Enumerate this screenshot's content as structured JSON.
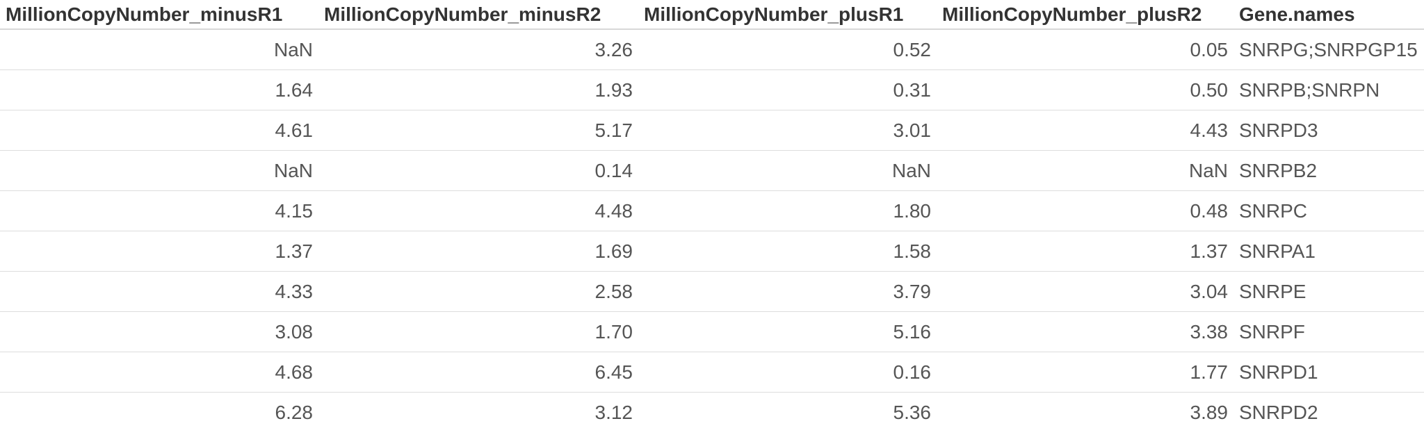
{
  "table": {
    "columns": [
      "MillionCopyNumber_minusR1",
      "MillionCopyNumber_minusR2",
      "MillionCopyNumber_plusR1",
      "MillionCopyNumber_plusR2",
      "Gene.names"
    ],
    "rows": [
      [
        "NaN",
        "3.26",
        "0.52",
        "0.05",
        "SNRPG;SNRPGP15"
      ],
      [
        "1.64",
        "1.93",
        "0.31",
        "0.50",
        "SNRPB;SNRPN"
      ],
      [
        "4.61",
        "5.17",
        "3.01",
        "4.43",
        "SNRPD3"
      ],
      [
        "NaN",
        "0.14",
        "NaN",
        "NaN",
        "SNRPB2"
      ],
      [
        "4.15",
        "4.48",
        "1.80",
        "0.48",
        "SNRPC"
      ],
      [
        "1.37",
        "1.69",
        "1.58",
        "1.37",
        "SNRPA1"
      ],
      [
        "4.33",
        "2.58",
        "3.79",
        "3.04",
        "SNRPE"
      ],
      [
        "3.08",
        "1.70",
        "5.16",
        "3.38",
        "SNRPF"
      ],
      [
        "4.68",
        "6.45",
        "0.16",
        "1.77",
        "SNRPD1"
      ],
      [
        "6.28",
        "3.12",
        "5.36",
        "3.89",
        "SNRPD2"
      ]
    ]
  }
}
